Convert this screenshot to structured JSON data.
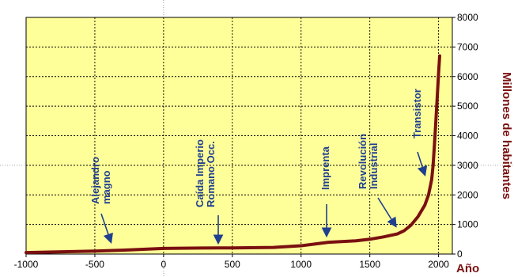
{
  "chart_data": {
    "type": "line",
    "title": "",
    "xlabel": "Año",
    "ylabel": "Millones de habitantes",
    "xlim": [
      -1000,
      2100
    ],
    "ylim": [
      0,
      8000
    ],
    "x_ticks": [
      "-1000",
      "-500",
      "0",
      "500",
      "1000",
      "1500",
      "2000"
    ],
    "y_ticks": [
      "0",
      "1000",
      "2000",
      "3000",
      "4000",
      "5000",
      "6000",
      "7000",
      "8000"
    ],
    "grid": true,
    "y_axis_side": "right",
    "series": [
      {
        "x": [
          -1000,
          -500,
          -300,
          0,
          200,
          400,
          500,
          800,
          1000,
          1200,
          1400,
          1500,
          1600,
          1700,
          1750,
          1800,
          1850,
          1900,
          1927,
          1950,
          1960,
          1970,
          1980,
          1990,
          2000,
          2008
        ],
        "y": [
          50,
          100,
          130,
          190,
          200,
          210,
          205,
          225,
          280,
          400,
          450,
          500,
          580,
          680,
          790,
          980,
          1260,
          1650,
          2000,
          2520,
          3000,
          3700,
          4450,
          5300,
          6100,
          6700
        ],
        "color": "#7a1010"
      }
    ],
    "annotations": [
      {
        "text": [
          "Alejandro",
          "magno"
        ],
        "x": -330,
        "y": 400
      },
      {
        "text": [
          "Caída Imperio",
          "Romano Occ."
        ],
        "x": 450,
        "y": 400
      },
      {
        "text": [
          "Imprenta"
        ],
        "x": 1240,
        "y": 680
      },
      {
        "text": [
          "Revolución",
          "Industrial"
        ],
        "x": 1750,
        "y": 900
      },
      {
        "text": [
          "Transistor"
        ],
        "x": 1940,
        "y": 2500
      }
    ],
    "colors": {
      "plot_background": "#ffff99",
      "line": "#7a1010",
      "annotation": "#1f3f8f",
      "axis_title": "#7a1010"
    }
  }
}
